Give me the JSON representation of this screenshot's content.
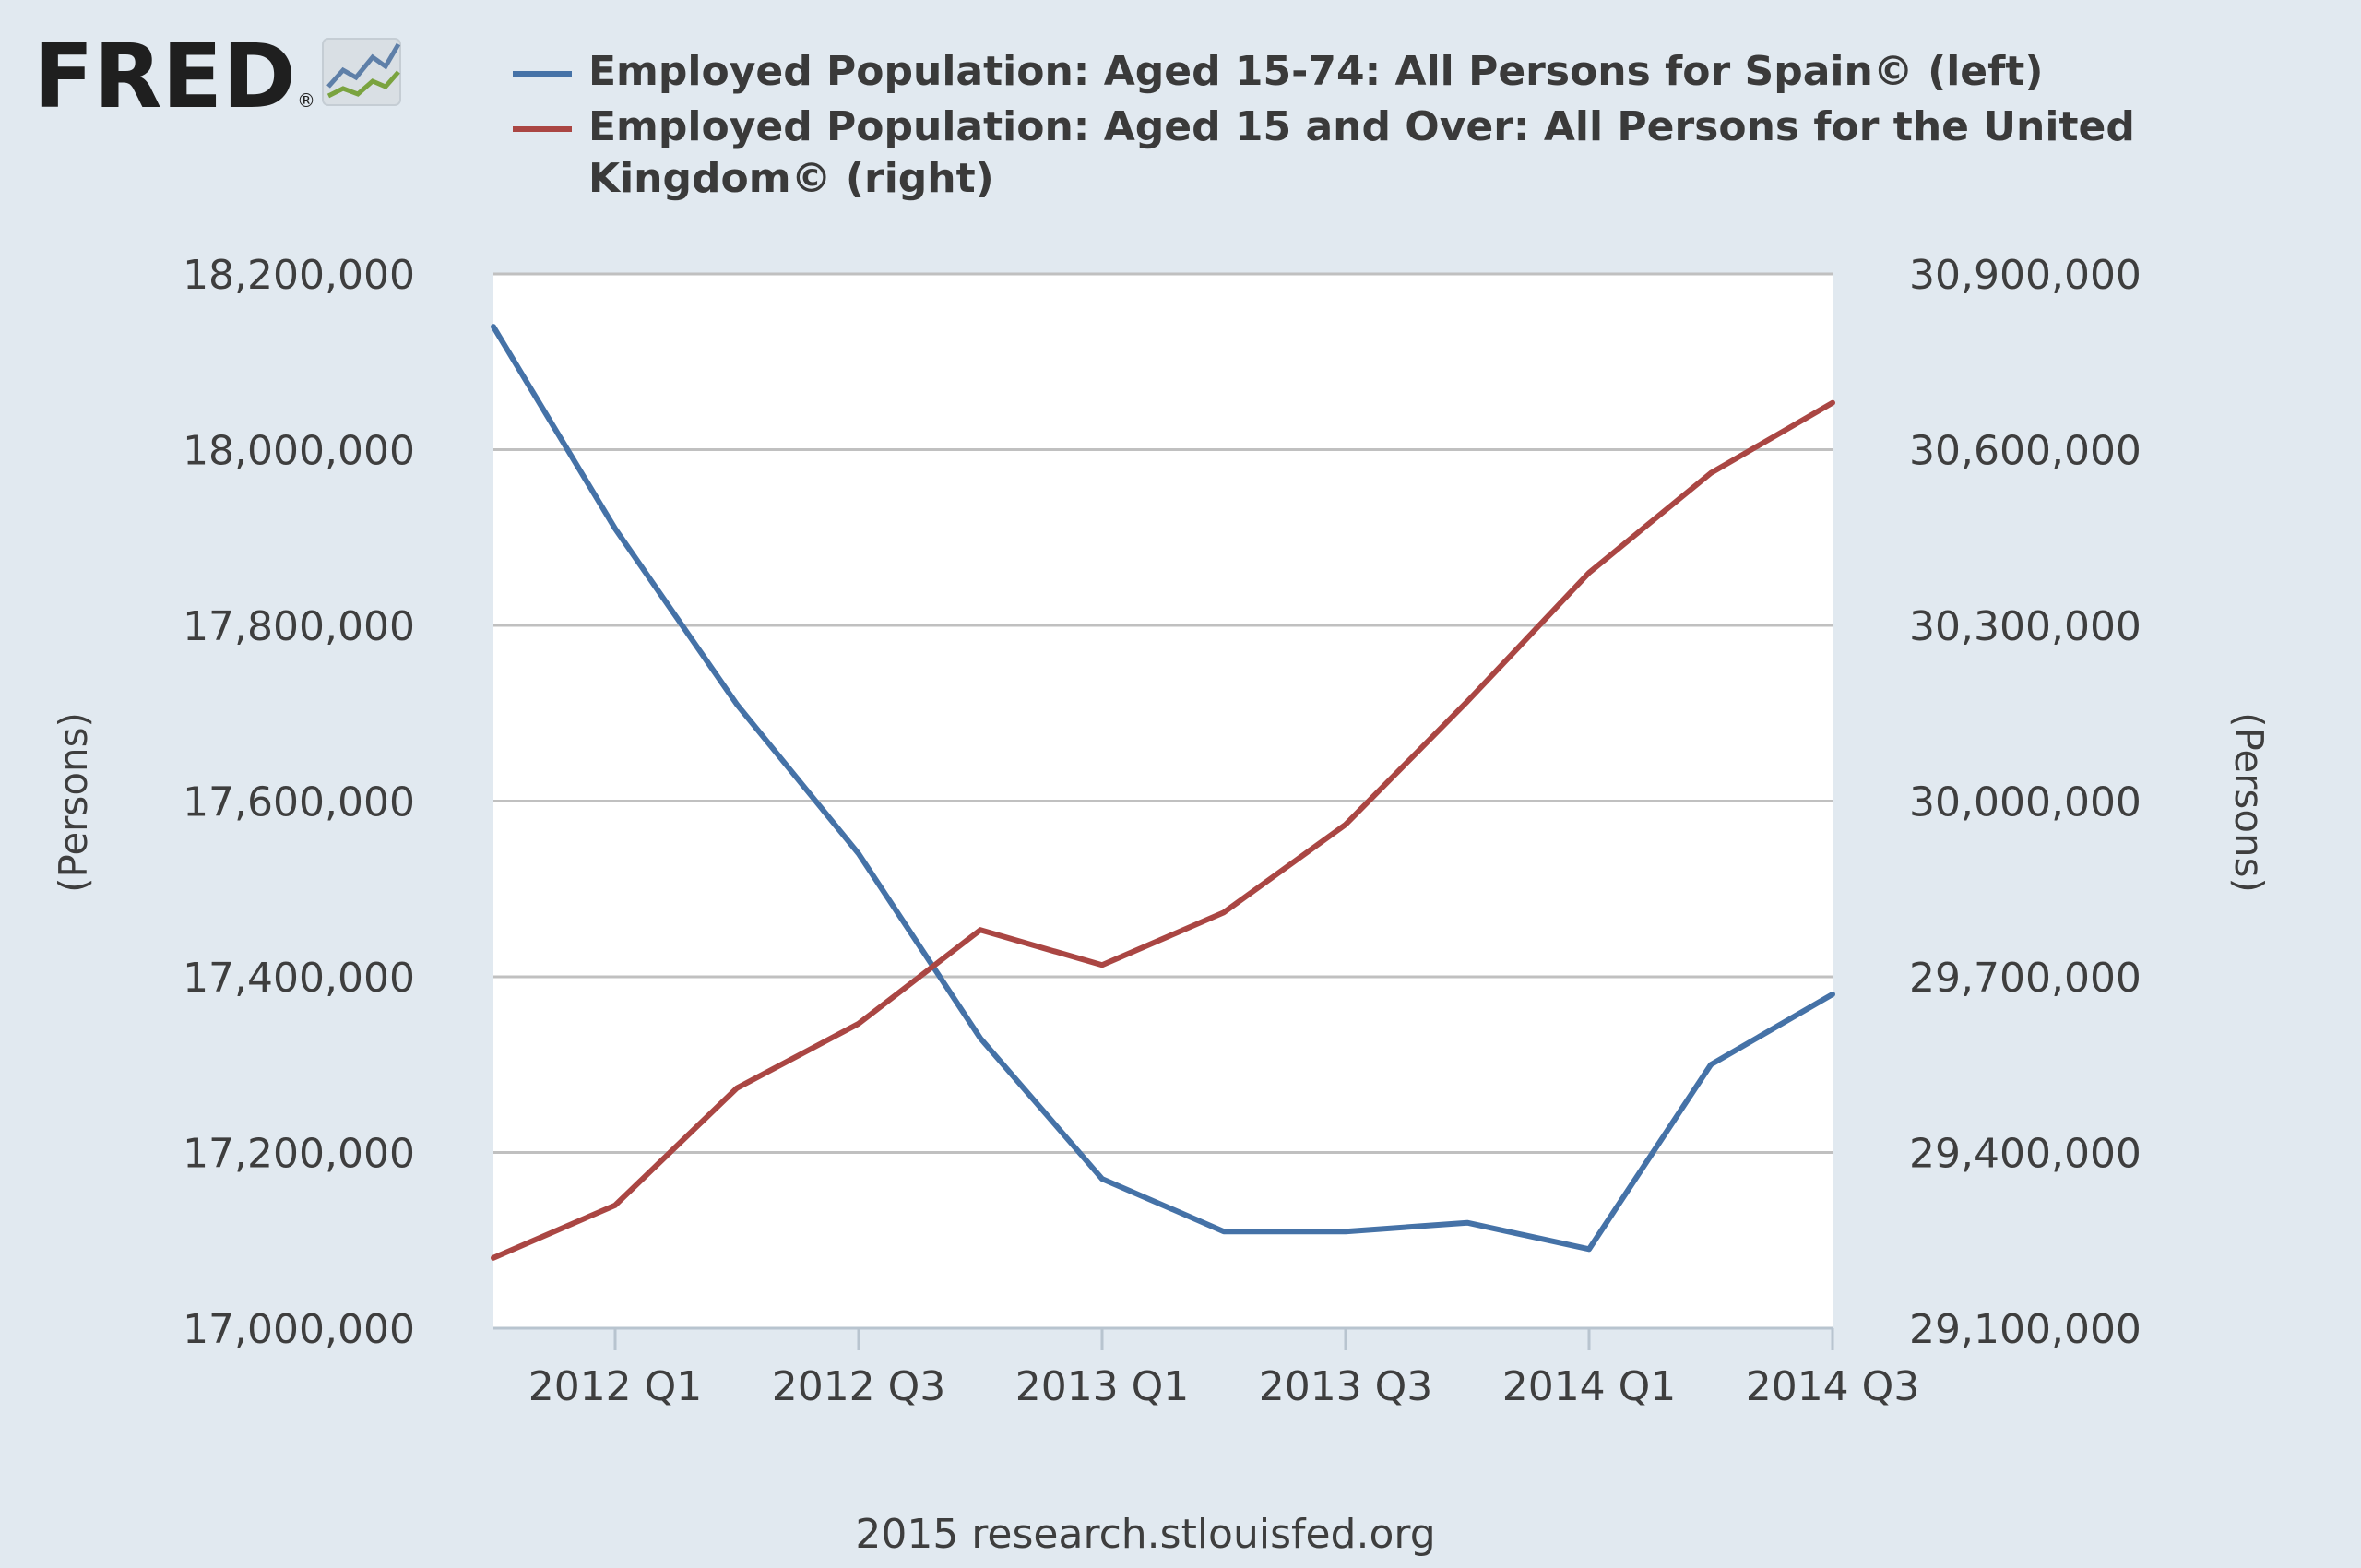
{
  "logo": {
    "text": "FRED",
    "registered": "®"
  },
  "credit": "2015 research.stlouisfed.org",
  "colors": {
    "spain": "#4572a7",
    "uk": "#aa4643",
    "background": "#e1e9f0",
    "plot_bg": "#ffffff",
    "grid": "#c0c0c0"
  },
  "chart_data": {
    "type": "line",
    "x": [
      "2011 Q4",
      "2012 Q1",
      "2012 Q2",
      "2012 Q3",
      "2012 Q4",
      "2013 Q1",
      "2013 Q2",
      "2013 Q3",
      "2013 Q4",
      "2014 Q1",
      "2014 Q2",
      "2014 Q3"
    ],
    "x_tick_labels": [
      "2012 Q1",
      "2012 Q3",
      "2013 Q1",
      "2013 Q3",
      "2014 Q1",
      "2014 Q3"
    ],
    "left_axis": {
      "label": "(Persons)",
      "ylim": [
        17000000,
        18200000
      ],
      "ticks": [
        17000000,
        17200000,
        17400000,
        17600000,
        17800000,
        18000000,
        18200000
      ],
      "tick_labels": [
        "17,000,000",
        "17,200,000",
        "17,400,000",
        "17,600,000",
        "17,800,000",
        "18,000,000",
        "18,200,000"
      ]
    },
    "right_axis": {
      "label": "(Persons)",
      "ylim": [
        29100000,
        30900000
      ],
      "ticks": [
        29100000,
        29400000,
        29700000,
        30000000,
        30300000,
        30600000,
        30900000
      ],
      "tick_labels": [
        "29,100,000",
        "29,400,000",
        "29,700,000",
        "30,000,000",
        "30,300,000",
        "30,600,000",
        "30,900,000"
      ]
    },
    "series": [
      {
        "name": "Employed Population: Aged 15-74: All Persons for Spain© (left)",
        "axis": "left",
        "color": "#4572a7",
        "values": [
          18140000,
          17910000,
          17710000,
          17540000,
          17330000,
          17170000,
          17110000,
          17110000,
          17120000,
          17090000,
          17300000,
          17380000
        ]
      },
      {
        "name": "Employed Population: Aged 15 and Over: All Persons for the United Kingdom© (right)",
        "legend_lines": [
          "Employed Population: Aged 15 and Over: All Persons for the United",
          "Kingdom© (right)"
        ],
        "axis": "right",
        "color": "#aa4643",
        "values": [
          29220000,
          29310000,
          29510000,
          29620000,
          29780000,
          29720000,
          29810000,
          29960000,
          30170000,
          30390000,
          30560000,
          30680000
        ]
      }
    ],
    "grid": true,
    "legend_position": "top"
  }
}
